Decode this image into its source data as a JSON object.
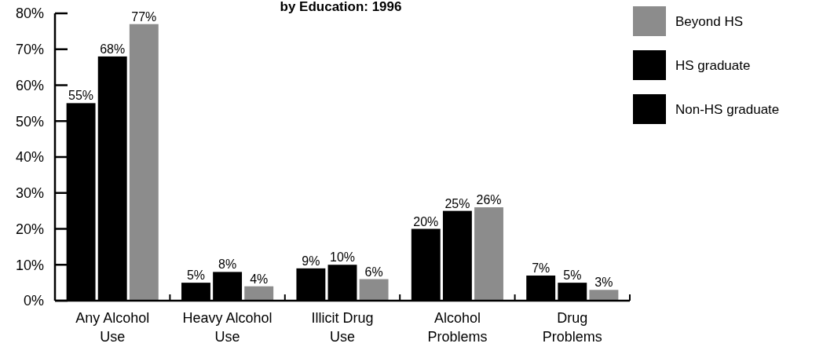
{
  "chart_data": {
    "type": "bar",
    "title": "by Education: 1996",
    "categories": [
      "Any Alcohol Use",
      "Heavy Alcohol Use",
      "Illicit Drug Use",
      "Alcohol Problems",
      "Drug Problems"
    ],
    "series": [
      {
        "name": "Non-HS graduate",
        "color": "#000000",
        "values": [
          55,
          5,
          9,
          20,
          7
        ],
        "value_labels": [
          "55%",
          "5%",
          "9%",
          "20%",
          "7%"
        ]
      },
      {
        "name": "HS graduate",
        "color": "#000000",
        "values": [
          68,
          8,
          10,
          25,
          5
        ],
        "value_labels": [
          "68%",
          "8%",
          "10%",
          "25%",
          "5%"
        ]
      },
      {
        "name": "Beyond HS",
        "color": "#8c8c8c",
        "values": [
          77,
          4,
          6,
          26,
          3
        ],
        "value_labels": [
          "77%",
          "4%",
          "6%",
          "26%",
          "3%"
        ]
      }
    ],
    "ylim": [
      0,
      80
    ],
    "yticks": [
      {
        "value": 0,
        "label": "0%"
      },
      {
        "value": 10,
        "label": "10%"
      },
      {
        "value": 20,
        "label": "20%"
      },
      {
        "value": 30,
        "label": "30%"
      },
      {
        "value": 40,
        "label": "40%"
      },
      {
        "value": 50,
        "label": "50%"
      },
      {
        "value": 60,
        "label": "60%"
      },
      {
        "value": 70,
        "label": "70%"
      },
      {
        "value": 80,
        "label": "80%"
      }
    ],
    "legend": "top right"
  }
}
